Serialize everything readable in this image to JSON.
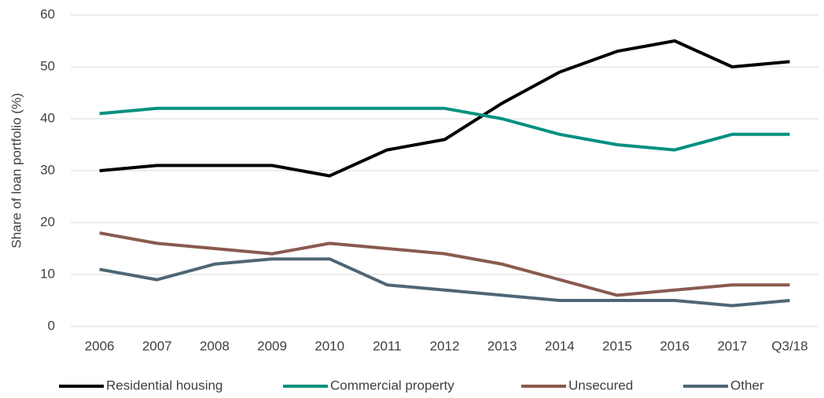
{
  "chart_data": {
    "type": "line",
    "y_label": "Share of loan portfolio (%)",
    "categories": [
      "2006",
      "2007",
      "2008",
      "2009",
      "2010",
      "2011",
      "2012",
      "2013",
      "2014",
      "2015",
      "2016",
      "2017",
      "Q3/18"
    ],
    "series": [
      {
        "name": "Residential housing",
        "color": "#000000",
        "values": [
          30,
          31,
          31,
          31,
          29,
          34,
          36,
          43,
          49,
          53,
          55,
          50,
          51
        ]
      },
      {
        "name": "Commercial property",
        "color": "#00917f",
        "values": [
          41,
          42,
          42,
          42,
          42,
          42,
          42,
          40,
          37,
          35,
          34,
          37,
          37
        ]
      },
      {
        "name": "Unsecured",
        "color": "#8a5a4f",
        "values": [
          18,
          16,
          15,
          14,
          16,
          15,
          14,
          12,
          9,
          6,
          7,
          8,
          8
        ]
      },
      {
        "name": "Other",
        "color": "#4e6675",
        "values": [
          11,
          9,
          12,
          13,
          13,
          8,
          7,
          6,
          5,
          5,
          5,
          4,
          5
        ]
      }
    ],
    "ylim": [
      0,
      60
    ],
    "yticks": [
      0,
      10,
      20,
      30,
      40,
      50,
      60
    ],
    "grid": true,
    "legend": "bottom"
  }
}
